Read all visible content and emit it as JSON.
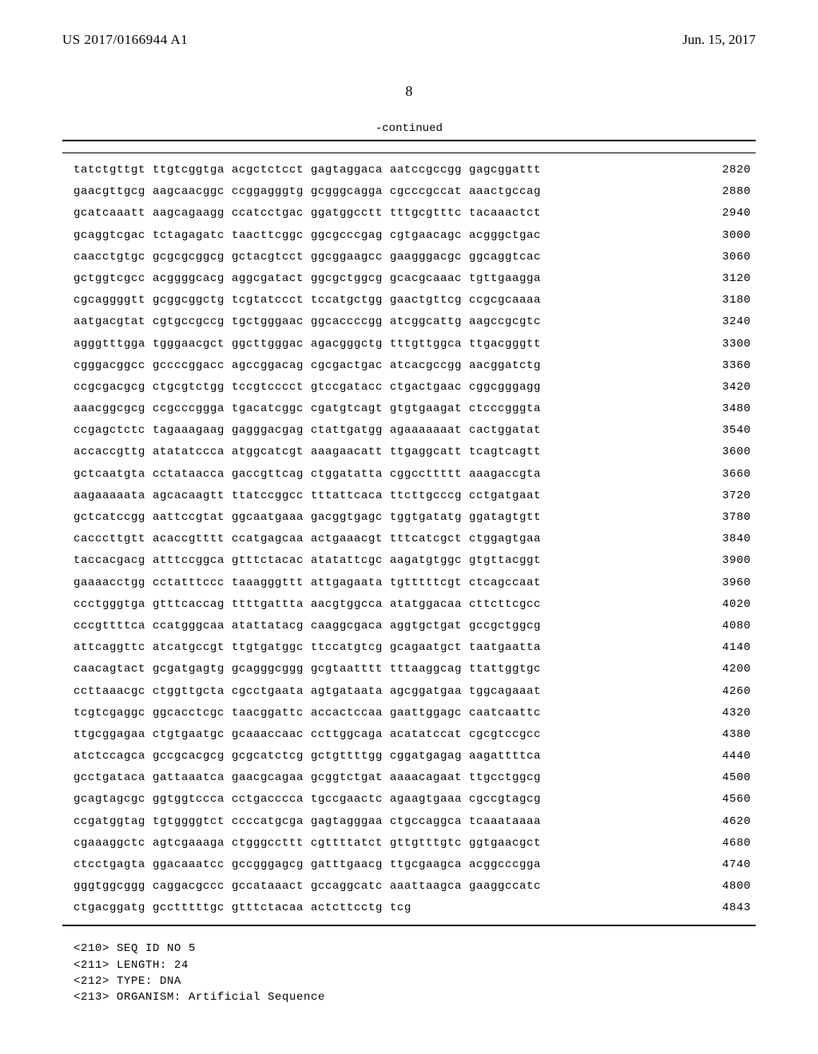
{
  "header": {
    "publication_number": "US 2017/0166944 A1",
    "publication_date": "Jun. 15, 2017",
    "page_number": "8",
    "continued_label": "-continued"
  },
  "sequence": {
    "lines": [
      {
        "seq": "tatctgttgt ttgtcggtga acgctctcct gagtaggaca aatccgccgg gagcggattt",
        "pos": "2820"
      },
      {
        "seq": "gaacgttgcg aagcaacggc ccggagggtg gcgggcagga cgcccgccat aaactgccag",
        "pos": "2880"
      },
      {
        "seq": "gcatcaaatt aagcagaagg ccatcctgac ggatggcctt tttgcgtttc tacaaactct",
        "pos": "2940"
      },
      {
        "seq": "gcaggtcgac tctagagatc taacttcggc ggcgcccgag cgtgaacagc acgggctgac",
        "pos": "3000"
      },
      {
        "seq": "caacctgtgc gcgcgcggcg gctacgtcct ggcggaagcc gaagggacgc ggcaggtcac",
        "pos": "3060"
      },
      {
        "seq": "gctggtcgcc acggggcacg aggcgatact ggcgctggcg gcacgcaaac tgttgaagga",
        "pos": "3120"
      },
      {
        "seq": "cgcaggggtt gcggcggctg tcgtatccct tccatgctgg gaactgttcg ccgcgcaaaa",
        "pos": "3180"
      },
      {
        "seq": "aatgacgtat cgtgccgccg tgctgggaac ggcaccccgg atcggcattg aagccgcgtc",
        "pos": "3240"
      },
      {
        "seq": "agggtttgga tgggaacgct ggcttgggac agacgggctg tttgttggca ttgacgggtt",
        "pos": "3300"
      },
      {
        "seq": "cgggacggcc gccccggacc agccggacag cgcgactgac atcacgccgg aacggatctg",
        "pos": "3360"
      },
      {
        "seq": "ccgcgacgcg ctgcgtctgg tccgtcccct gtccgatacc ctgactgaac cggcgggagg",
        "pos": "3420"
      },
      {
        "seq": "aaacggcgcg ccgcccggga tgacatcggc cgatgtcagt gtgtgaagat ctcccgggta",
        "pos": "3480"
      },
      {
        "seq": "ccgagctctc tagaaagaag gagggacgag ctattgatgg agaaaaaaat cactggatat",
        "pos": "3540"
      },
      {
        "seq": "accaccgttg atatatccca atggcatcgt aaagaacatt ttgaggcatt tcagtcagtt",
        "pos": "3600"
      },
      {
        "seq": "gctcaatgta cctataacca gaccgttcag ctggatatta cggccttttt aaagaccgta",
        "pos": "3660"
      },
      {
        "seq": "aagaaaaata agcacaagtt ttatccggcc tttattcaca ttcttgcccg cctgatgaat",
        "pos": "3720"
      },
      {
        "seq": "gctcatccgg aattccgtat ggcaatgaaa gacggtgagc tggtgatatg ggatagtgtt",
        "pos": "3780"
      },
      {
        "seq": "cacccttgtt acaccgtttt ccatgagcaa actgaaacgt tttcatcgct ctggagtgaa",
        "pos": "3840"
      },
      {
        "seq": "taccacgacg atttccggca gtttctacac atatattcgc aagatgtggc gtgttacggt",
        "pos": "3900"
      },
      {
        "seq": "gaaaacctgg cctatttccc taaagggttt attgagaata tgtttttcgt ctcagccaat",
        "pos": "3960"
      },
      {
        "seq": "ccctgggtga gtttcaccag ttttgattta aacgtggcca atatggacaa cttcttcgcc",
        "pos": "4020"
      },
      {
        "seq": "cccgttttca ccatgggcaa atattatacg caaggcgaca aggtgctgat gccgctggcg",
        "pos": "4080"
      },
      {
        "seq": "attcaggttc atcatgccgt ttgtgatggc ttccatgtcg gcagaatgct taatgaatta",
        "pos": "4140"
      },
      {
        "seq": "caacagtact gcgatgagtg gcagggcggg gcgtaatttt tttaaggcag ttattggtgc",
        "pos": "4200"
      },
      {
        "seq": "ccttaaacgc ctggttgcta cgcctgaata agtgataata agcggatgaa tggcagaaat",
        "pos": "4260"
      },
      {
        "seq": "tcgtcgaggc ggcacctcgc taacggattc accactccaa gaattggagc caatcaattc",
        "pos": "4320"
      },
      {
        "seq": "ttgcggagaa ctgtgaatgc gcaaaccaac ccttggcaga acatatccat cgcgtccgcc",
        "pos": "4380"
      },
      {
        "seq": "atctccagca gccgcacgcg gcgcatctcg gctgttttgg cggatgagag aagattttca",
        "pos": "4440"
      },
      {
        "seq": "gcctgataca gattaaatca gaacgcagaa gcggtctgat aaaacagaat ttgcctggcg",
        "pos": "4500"
      },
      {
        "seq": "gcagtagcgc ggtggtccca cctgacccca tgccgaactc agaagtgaaa cgccgtagcg",
        "pos": "4560"
      },
      {
        "seq": "ccgatggtag tgtggggtct ccccatgcga gagtagggaa ctgccaggca tcaaataaaa",
        "pos": "4620"
      },
      {
        "seq": "cgaaaggctc agtcgaaaga ctgggccttt cgttttatct gttgtttgtc ggtgaacgct",
        "pos": "4680"
      },
      {
        "seq": "ctcctgagta ggacaaatcc gccgggagcg gatttgaacg ttgcgaagca acggcccgga",
        "pos": "4740"
      },
      {
        "seq": "gggtggcggg caggacgccc gccataaact gccaggcatc aaattaagca gaaggccatc",
        "pos": "4800"
      },
      {
        "seq": "ctgacggatg gcctttttgc gtttctacaa actcttcctg tcg",
        "pos": "4843"
      }
    ]
  },
  "metadata": {
    "lines": [
      "<210> SEQ ID NO 5",
      "<211> LENGTH: 24",
      "<212> TYPE: DNA",
      "<213> ORGANISM: Artificial Sequence"
    ]
  }
}
